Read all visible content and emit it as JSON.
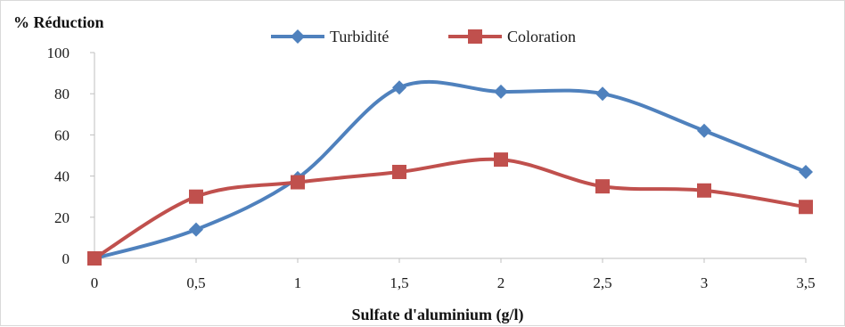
{
  "chart_data": {
    "type": "line",
    "title": "% Réduction",
    "xlabel": "Sulfate d'aluminium (g/l)",
    "ylabel": "% Réduction",
    "x": [
      0,
      0.5,
      1,
      1.5,
      2,
      2.5,
      3,
      3.5
    ],
    "x_tick_labels": [
      "0",
      "0,5",
      "1",
      "1,5",
      "2",
      "2,5",
      "3",
      "3,5"
    ],
    "y_ticks": [
      0,
      20,
      40,
      60,
      80,
      100
    ],
    "y_tick_labels": [
      "0",
      "20",
      "40",
      "60",
      "80",
      "100"
    ],
    "xlim": [
      0,
      3.5
    ],
    "ylim": [
      0,
      100
    ],
    "grid": false,
    "legend_position": "top",
    "series": [
      {
        "name": "Turbidité",
        "color": "#4f81bd",
        "marker": "diamond",
        "values": [
          0,
          14,
          39,
          83,
          81,
          80,
          62,
          42
        ]
      },
      {
        "name": "Coloration",
        "color": "#c0504d",
        "marker": "square",
        "values": [
          0,
          30,
          37,
          42,
          48,
          35,
          33,
          25
        ]
      }
    ]
  }
}
